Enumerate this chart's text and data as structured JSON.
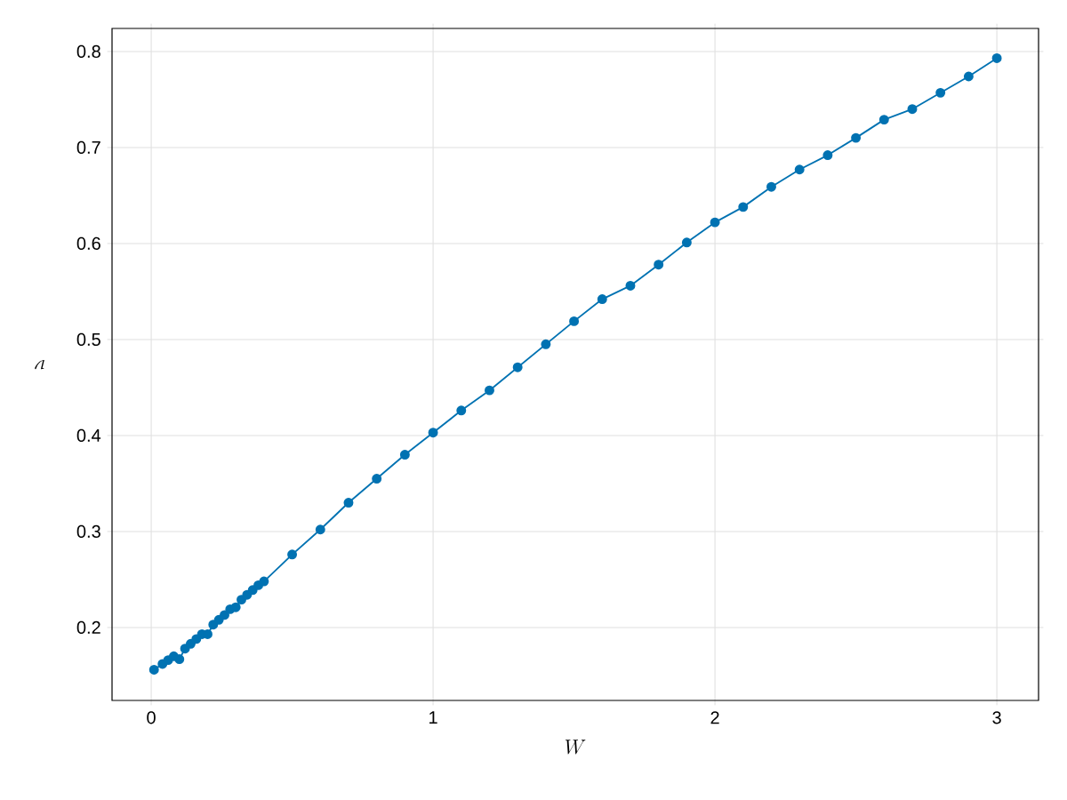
{
  "chart_data": {
    "type": "line",
    "xlabel": "W",
    "ylabel": "\\nu",
    "x": [
      0.01,
      0.04,
      0.06,
      0.08,
      0.1,
      0.12,
      0.14,
      0.16,
      0.18,
      0.2,
      0.22,
      0.24,
      0.26,
      0.28,
      0.3,
      0.32,
      0.34,
      0.36,
      0.38,
      0.4,
      0.5,
      0.6,
      0.7,
      0.8,
      0.9,
      1.0,
      1.1,
      1.2,
      1.3,
      1.4,
      1.5,
      1.6,
      1.7,
      1.8,
      1.9,
      2.0,
      2.1,
      2.2,
      2.3,
      2.4,
      2.5,
      2.6,
      2.7,
      2.8,
      2.9,
      3.0
    ],
    "series": [
      {
        "color": "#0072b2",
        "values": [
          0.156,
          0.162,
          0.166,
          0.17,
          0.167,
          0.178,
          0.183,
          0.188,
          0.193,
          0.193,
          0.203,
          0.208,
          0.213,
          0.219,
          0.221,
          0.229,
          0.234,
          0.239,
          0.244,
          0.248,
          0.276,
          0.302,
          0.33,
          0.355,
          0.38,
          0.403,
          0.426,
          0.447,
          0.471,
          0.495,
          0.519,
          0.542,
          0.556,
          0.578,
          0.601,
          0.622,
          0.638,
          0.659,
          0.677,
          0.692,
          0.71,
          0.729,
          0.74,
          0.757,
          0.774,
          0.793
        ]
      }
    ],
    "xlim": [
      -0.139,
      3.148
    ],
    "ylim": [
      0.124,
      0.824
    ],
    "xticks": [
      0,
      1,
      2,
      3
    ],
    "yticks": [
      0.2,
      0.3,
      0.4,
      0.5,
      0.6,
      0.7,
      0.8
    ],
    "grid": true,
    "marker": "circle",
    "line_style": "solid"
  }
}
